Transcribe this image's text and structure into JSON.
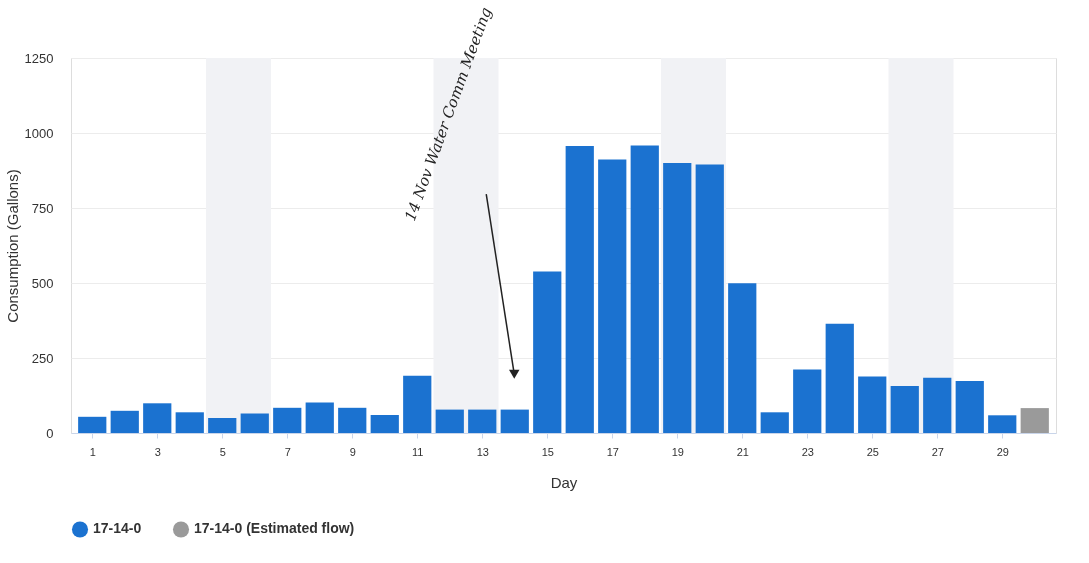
{
  "chart_data": {
    "type": "bar",
    "xlabel": "Day",
    "ylabel": "Consumption (Gallons)",
    "x": [
      1,
      2,
      3,
      4,
      5,
      6,
      7,
      8,
      9,
      10,
      11,
      12,
      13,
      14,
      15,
      16,
      17,
      18,
      19,
      20,
      21,
      22,
      23,
      24,
      25,
      26,
      27,
      28,
      29,
      30
    ],
    "series": [
      {
        "name": "17-14-0",
        "color": "#1b72d0",
        "values": [
          54,
          74,
          99,
          69,
          50,
          65,
          84,
          102,
          84,
          60,
          191,
          78,
          78,
          78,
          538,
          957,
          912,
          958,
          900,
          895,
          499,
          69,
          212,
          364,
          188,
          157,
          184,
          173,
          59,
          null
        ]
      },
      {
        "name": "17-14-0 (Estimated flow)",
        "color": "#9a9a9a",
        "values": [
          null,
          null,
          null,
          null,
          null,
          null,
          null,
          null,
          null,
          null,
          null,
          null,
          null,
          null,
          null,
          null,
          null,
          null,
          null,
          null,
          null,
          null,
          null,
          null,
          null,
          null,
          null,
          null,
          null,
          83
        ]
      }
    ],
    "xlim": [
      0.5,
      30.5
    ],
    "xticks": [
      1,
      3,
      5,
      7,
      9,
      11,
      13,
      15,
      17,
      19,
      21,
      23,
      25,
      27,
      29
    ],
    "ylim": [
      0,
      1250
    ],
    "yticks": [
      0,
      250,
      500,
      750,
      1000,
      1250
    ],
    "bands": [
      {
        "axis": "x",
        "from": 4.5,
        "to": 6.5,
        "color": "#f1f2f5"
      },
      {
        "axis": "x",
        "from": 11.5,
        "to": 13.5,
        "color": "#f1f2f5"
      },
      {
        "axis": "x",
        "from": 18.5,
        "to": 20.5,
        "color": "#f1f2f5"
      },
      {
        "axis": "x",
        "from": 25.5,
        "to": 27.5,
        "color": "#f1f2f5"
      }
    ],
    "annotations": [
      {
        "text": "14 Nov Water Comm Meeting",
        "x": 14,
        "y": 196
      }
    ],
    "grid": "y",
    "legend": "bottom"
  }
}
